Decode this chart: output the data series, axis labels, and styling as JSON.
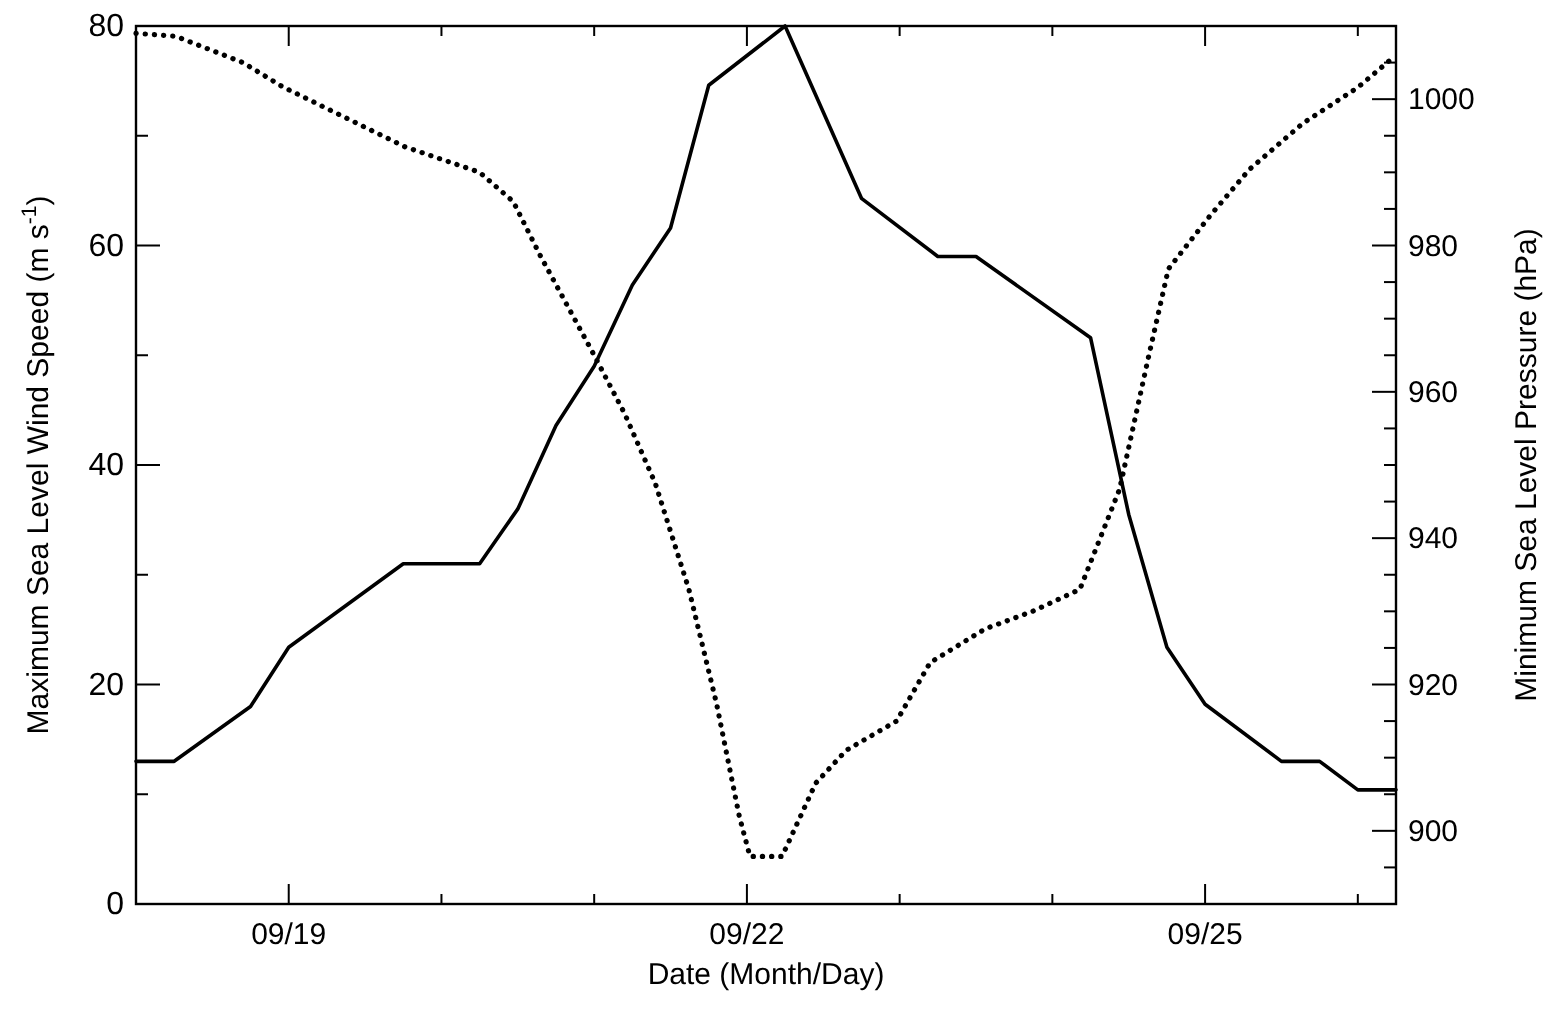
{
  "chart_data": {
    "type": "line",
    "xlabel": "Date (Month/Day)",
    "ylabel": "Maximum Sea Level Wind Speed (m s$^{-1}$)",
    "y2label": "Minimum Sea Level Pressure (hPa)",
    "xlim": [
      "--09-18T00:00",
      "--09-26T06:00"
    ],
    "xticks": [
      {
        "value": "--09-19",
        "label": "09/19"
      },
      {
        "value": "--09-20",
        "label": null
      },
      {
        "value": "--09-21",
        "label": null
      },
      {
        "value": "--09-22",
        "label": "09/22"
      },
      {
        "value": "--09-23",
        "label": null
      },
      {
        "value": "--09-24",
        "label": null
      },
      {
        "value": "--09-25",
        "label": "09/25"
      },
      {
        "value": "--09-26",
        "label": null
      }
    ],
    "ylim": [
      0,
      80
    ],
    "yticks": [
      0,
      {
        "value": 10,
        "label": null
      },
      20,
      {
        "value": 30,
        "label": null
      },
      40,
      {
        "value": 50,
        "label": null
      },
      60,
      {
        "value": 70,
        "label": null
      },
      80
    ],
    "y2lim": [
      890,
      1010
    ],
    "y2ticks": [
      {
        "value": 895,
        "label": null
      },
      900,
      {
        "value": 905,
        "label": null
      },
      {
        "value": 910,
        "label": null
      },
      {
        "value": 915,
        "label": null
      },
      920,
      {
        "value": 925,
        "label": null
      },
      {
        "value": 930,
        "label": null
      },
      {
        "value": 935,
        "label": null
      },
      940,
      {
        "value": 945,
        "label": null
      },
      {
        "value": 950,
        "label": null
      },
      {
        "value": 955,
        "label": null
      },
      960,
      {
        "value": 965,
        "label": null
      },
      {
        "value": 970,
        "label": null
      },
      {
        "value": 975,
        "label": null
      },
      980,
      {
        "value": 985,
        "label": null
      },
      {
        "value": 990,
        "label": null
      },
      {
        "value": 995,
        "label": null
      },
      1000,
      {
        "value": 1005,
        "label": null
      }
    ],
    "grid": false,
    "series": [
      {
        "color": "#000000",
        "line_style": "solid",
        "x": [
          "--09-18T00:00",
          "--09-18T06:00",
          "--09-18T18:00",
          "--09-19T00:00",
          "--09-19T18:00",
          "--09-20T06:00",
          "--09-20T12:00",
          "--09-20T18:00",
          "--09-21T00:00",
          "--09-21T06:00",
          "--09-21T12:00",
          "--09-21T18:00",
          "--09-22T06:00",
          "--09-22T18:00",
          "--09-23T06:00",
          "--09-23T12:00",
          "--09-24T06:00",
          "--09-24T12:00",
          "--09-24T18:00",
          "--09-25T00:00",
          "--09-25T12:00",
          "--09-25T18:00",
          "--09-26T00:00",
          "--09-26T06:00"
        ],
        "values": [
          13,
          13,
          18,
          23.4,
          31,
          31,
          36,
          43.6,
          49,
          56.4,
          61.6,
          74.6,
          80,
          64.3,
          59,
          59,
          51.6,
          35.5,
          23.4,
          18.2,
          13,
          13,
          10.4,
          10.4
        ]
      },
      {
        "color": "#000000",
        "line_style": "dotted",
        "axis": "y2",
        "x": [
          "--09-18T00:00",
          "--09-18T06:14",
          "--09-18T16:48",
          "--09-18T23:02",
          "--09-19T07:41",
          "--09-19T18:14",
          "--09-20T06:00",
          "--09-20T11:17",
          "--09-20T15:36",
          "--09-21T00:00",
          "--09-21T04:48",
          "--09-21T09:36",
          "--09-21T14:53",
          "--09-21T19:12",
          "--09-21T22:48",
          "--09-22T00:29",
          "--09-22T05:31",
          "--09-22T10:48",
          "--09-22T15:36",
          "--09-22T23:31",
          "--09-23T04:48",
          "--09-23T13:26",
          "--09-23T20:53",
          "--09-24T04:19",
          "--09-24T10:34",
          "--09-24T15:07",
          "--09-24T18:14",
          "--09-25T00:43",
          "--09-25T06:58",
          "--09-25T15:22",
          "--09-26T00:00",
          "--09-26T05:17"
        ],
        "values": [
          1009,
          1008.6,
          1005,
          1001.7,
          998,
          993.5,
          990,
          986,
          978.5,
          965,
          957,
          947.5,
          933,
          917.5,
          902,
          896.5,
          896.5,
          906.5,
          911,
          915,
          923,
          927.6,
          930,
          933,
          946.7,
          964.8,
          976.8,
          984,
          990.4,
          996.7,
          1001.6,
          1005.5
        ]
      }
    ]
  }
}
